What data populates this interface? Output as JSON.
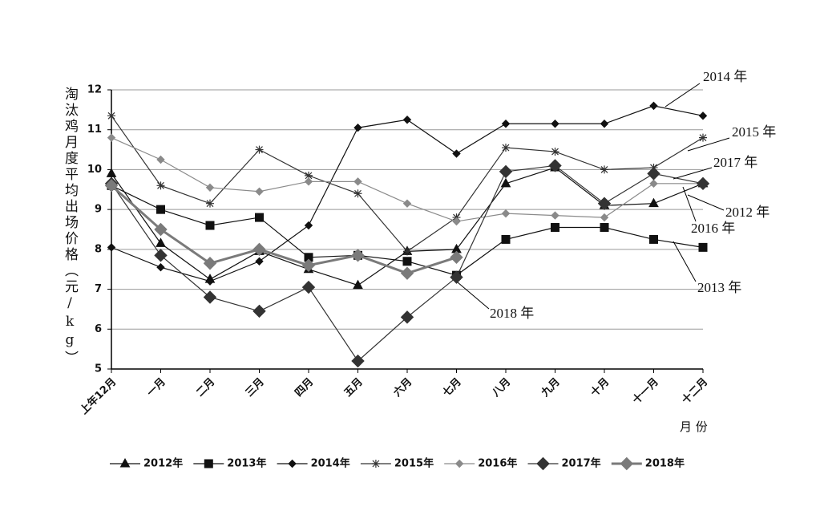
{
  "chart_data": {
    "type": "line",
    "y_label": "淘汰鸡月度平均出场价格（元/kg）",
    "x_label": "月 份",
    "categories": [
      "上年12月",
      "一月",
      "二月",
      "三月",
      "四月",
      "五月",
      "六月",
      "七月",
      "八月",
      "九月",
      "十月",
      "十一月",
      "十二月"
    ],
    "ylim": [
      5,
      12
    ],
    "yticks": [
      5,
      6,
      7,
      8,
      9,
      10,
      11,
      12
    ],
    "grid": true,
    "legend": "bottom",
    "series": [
      {
        "name": "2012年",
        "color": "#111111",
        "marker": "triangle",
        "values": [
          9.9,
          8.15,
          7.25,
          7.95,
          7.5,
          7.1,
          7.95,
          8.0,
          9.65,
          10.05,
          9.1,
          9.15,
          9.65
        ]
      },
      {
        "name": "2013年",
        "color": "#111111",
        "marker": "square",
        "values": [
          9.6,
          9.0,
          8.6,
          8.8,
          7.8,
          7.85,
          7.7,
          7.35,
          8.25,
          8.55,
          8.55,
          8.25,
          8.05
        ]
      },
      {
        "name": "2014年",
        "color": "#111111",
        "marker": "diamond",
        "values": [
          8.05,
          7.55,
          7.2,
          7.7,
          8.6,
          11.05,
          11.25,
          10.4,
          11.15,
          11.15,
          11.15,
          11.6,
          11.35
        ]
      },
      {
        "name": "2015年",
        "color": "#333333",
        "marker": "star",
        "values": [
          11.35,
          9.6,
          9.15,
          10.5,
          9.85,
          9.4,
          7.95,
          8.8,
          10.55,
          10.45,
          10.0,
          10.05,
          10.8
        ]
      },
      {
        "name": "2016年",
        "color": "#8a8a8a",
        "marker": "diamond",
        "values": [
          10.8,
          10.25,
          9.55,
          9.45,
          9.7,
          9.7,
          9.15,
          8.7,
          8.9,
          8.85,
          8.8,
          9.65,
          9.65
        ]
      },
      {
        "name": "2017年",
        "color": "#333333",
        "marker": "bigdiamond",
        "values": [
          9.65,
          7.85,
          6.8,
          6.45,
          7.05,
          5.2,
          6.3,
          7.3,
          9.95,
          10.1,
          9.15,
          9.9,
          9.65
        ]
      },
      {
        "name": "2018年",
        "color": "#7a7a7a",
        "marker": "bigdiamond",
        "width": 3,
        "values": [
          9.6,
          8.5,
          7.65,
          8.0,
          7.6,
          7.85,
          7.4,
          7.8,
          null,
          null,
          null,
          null,
          null
        ]
      }
    ],
    "annotations": [
      "2014 年",
      "2015 年",
      "2017 年",
      "2012 年",
      "2016 年",
      "2013 年",
      "2018 年"
    ]
  }
}
